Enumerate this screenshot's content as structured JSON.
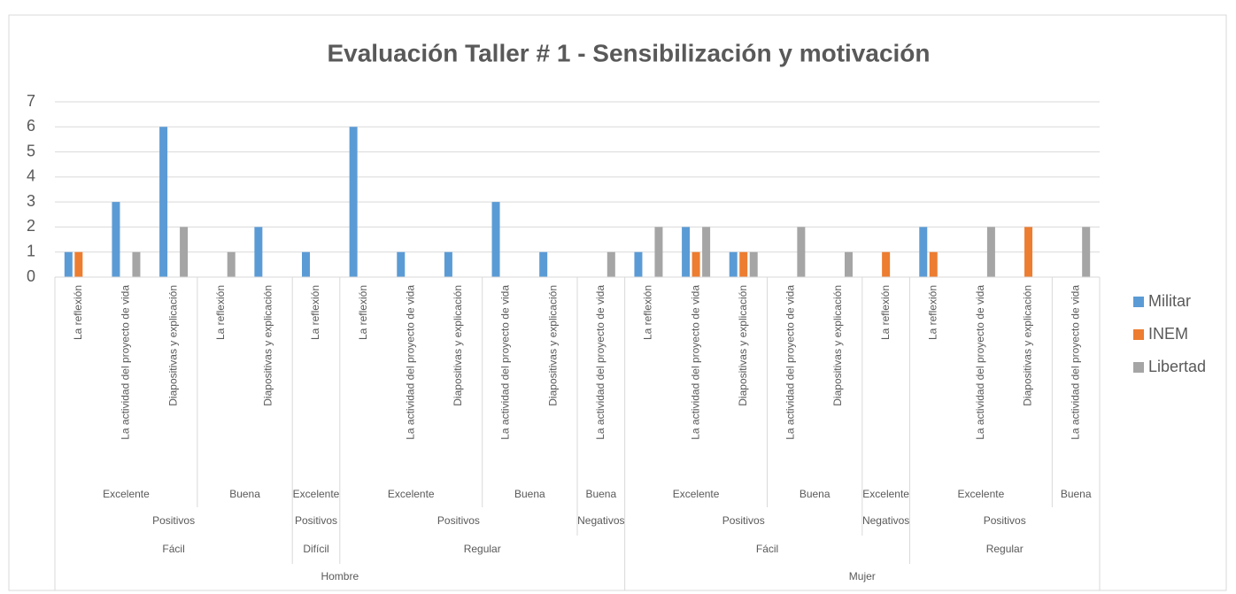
{
  "chart_data": {
    "type": "bar",
    "title": "Evaluación Taller # 1 - Sensibilización y motivación",
    "categories": [
      "La reflexión",
      "La actividad del proyecto de vida",
      "Diapositivas y explicación",
      "La reflexión",
      "Diapositivas y explicación",
      "La reflexión",
      "La reflexión",
      "La actividad del proyecto de vida",
      "Diapositivas y explicación",
      "La actividad del proyecto de vida",
      "Diapositivas y explicación",
      "La actividad del proyecto de vida",
      "La reflexión",
      "La actividad del proyecto de vida",
      "Diapositivas y explicación",
      "La actividad del proyecto de vida",
      "Diapositivas y explicación",
      "La reflexión",
      "La reflexión",
      "La actividad del proyecto de vida",
      "Diapositivas y explicación",
      "La actividad del proyecto de vida"
    ],
    "category_groups": [
      [
        "Excelente",
        "Excelente",
        "Excelente",
        "Buena",
        "Buena",
        "Excelente",
        "Excelente",
        "Excelente",
        "Excelente",
        "Buena",
        "Buena",
        "Buena",
        "Excelente",
        "Excelente",
        "Excelente",
        "Buena",
        "Buena",
        "Excelente",
        "Excelente",
        "Excelente",
        "Excelente",
        "Buena"
      ],
      [
        "Positivos",
        "Positivos",
        "Positivos",
        "Positivos",
        "Positivos",
        "Positivos",
        "Positivos",
        "Positivos",
        "Positivos",
        "Positivos",
        "Positivos",
        "Negativos",
        "Positivos",
        "Positivos",
        "Positivos",
        "Positivos",
        "Positivos",
        "Negativos",
        "Positivos",
        "Positivos",
        "Positivos",
        "Positivos"
      ],
      [
        "Fácil",
        "Fácil",
        "Fácil",
        "Fácil",
        "Fácil",
        "Difícil",
        "Regular",
        "Regular",
        "Regular",
        "Regular",
        "Regular",
        "Regular",
        "Fácil",
        "Fácil",
        "Fácil",
        "Fácil",
        "Fácil",
        "Fácil",
        "Regular",
        "Regular",
        "Regular",
        "Regular"
      ],
      [
        "Hombre",
        "Hombre",
        "Hombre",
        "Hombre",
        "Hombre",
        "Hombre",
        "Hombre",
        "Hombre",
        "Hombre",
        "Hombre",
        "Hombre",
        "Hombre",
        "Mujer",
        "Mujer",
        "Mujer",
        "Mujer",
        "Mujer",
        "Mujer",
        "Mujer",
        "Mujer",
        "Mujer",
        "Mujer"
      ]
    ],
    "series": [
      {
        "name": "Militar",
        "color": "#5b9bd5",
        "values": [
          1,
          3,
          6,
          0,
          2,
          1,
          6,
          1,
          1,
          3,
          1,
          0,
          1,
          2,
          1,
          0,
          0,
          0,
          2,
          0,
          0,
          0
        ]
      },
      {
        "name": "INEM",
        "color": "#ed7d31",
        "values": [
          1,
          0,
          0,
          0,
          0,
          0,
          0,
          0,
          0,
          0,
          0,
          0,
          0,
          1,
          1,
          0,
          0,
          1,
          1,
          0,
          2,
          0
        ]
      },
      {
        "name": "Libertad",
        "color": "#a5a5a5",
        "values": [
          0,
          1,
          2,
          1,
          0,
          0,
          0,
          0,
          0,
          0,
          0,
          1,
          2,
          2,
          1,
          2,
          1,
          0,
          0,
          2,
          0,
          2
        ]
      }
    ],
    "ylim": [
      0,
      7
    ],
    "yticks": [
      0,
      1,
      2,
      3,
      4,
      5,
      6,
      7
    ],
    "grid": true,
    "legend": "right"
  }
}
